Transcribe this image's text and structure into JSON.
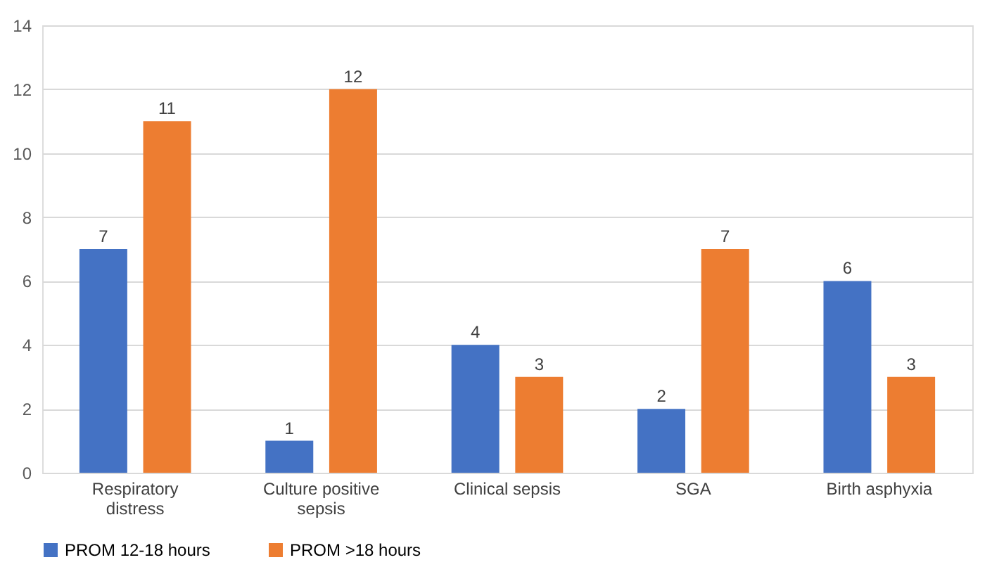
{
  "chart_data": {
    "type": "bar",
    "categories": [
      "Respiratory distress",
      "Culture positive sepsis",
      "Clinical sepsis",
      "SGA",
      "Birth asphyxia"
    ],
    "series": [
      {
        "name": "PROM 12-18 hours",
        "color": "#4472c4",
        "values": [
          7,
          1,
          4,
          2,
          6
        ]
      },
      {
        "name": "PROM >18 hours",
        "color": "#ed7d31",
        "values": [
          11,
          12,
          3,
          7,
          3
        ]
      }
    ],
    "ylim": [
      0,
      14
    ],
    "yticks": [
      0,
      2,
      4,
      6,
      8,
      10,
      12,
      14
    ],
    "grid": "y",
    "legend": "bottom",
    "data_labels": true
  }
}
